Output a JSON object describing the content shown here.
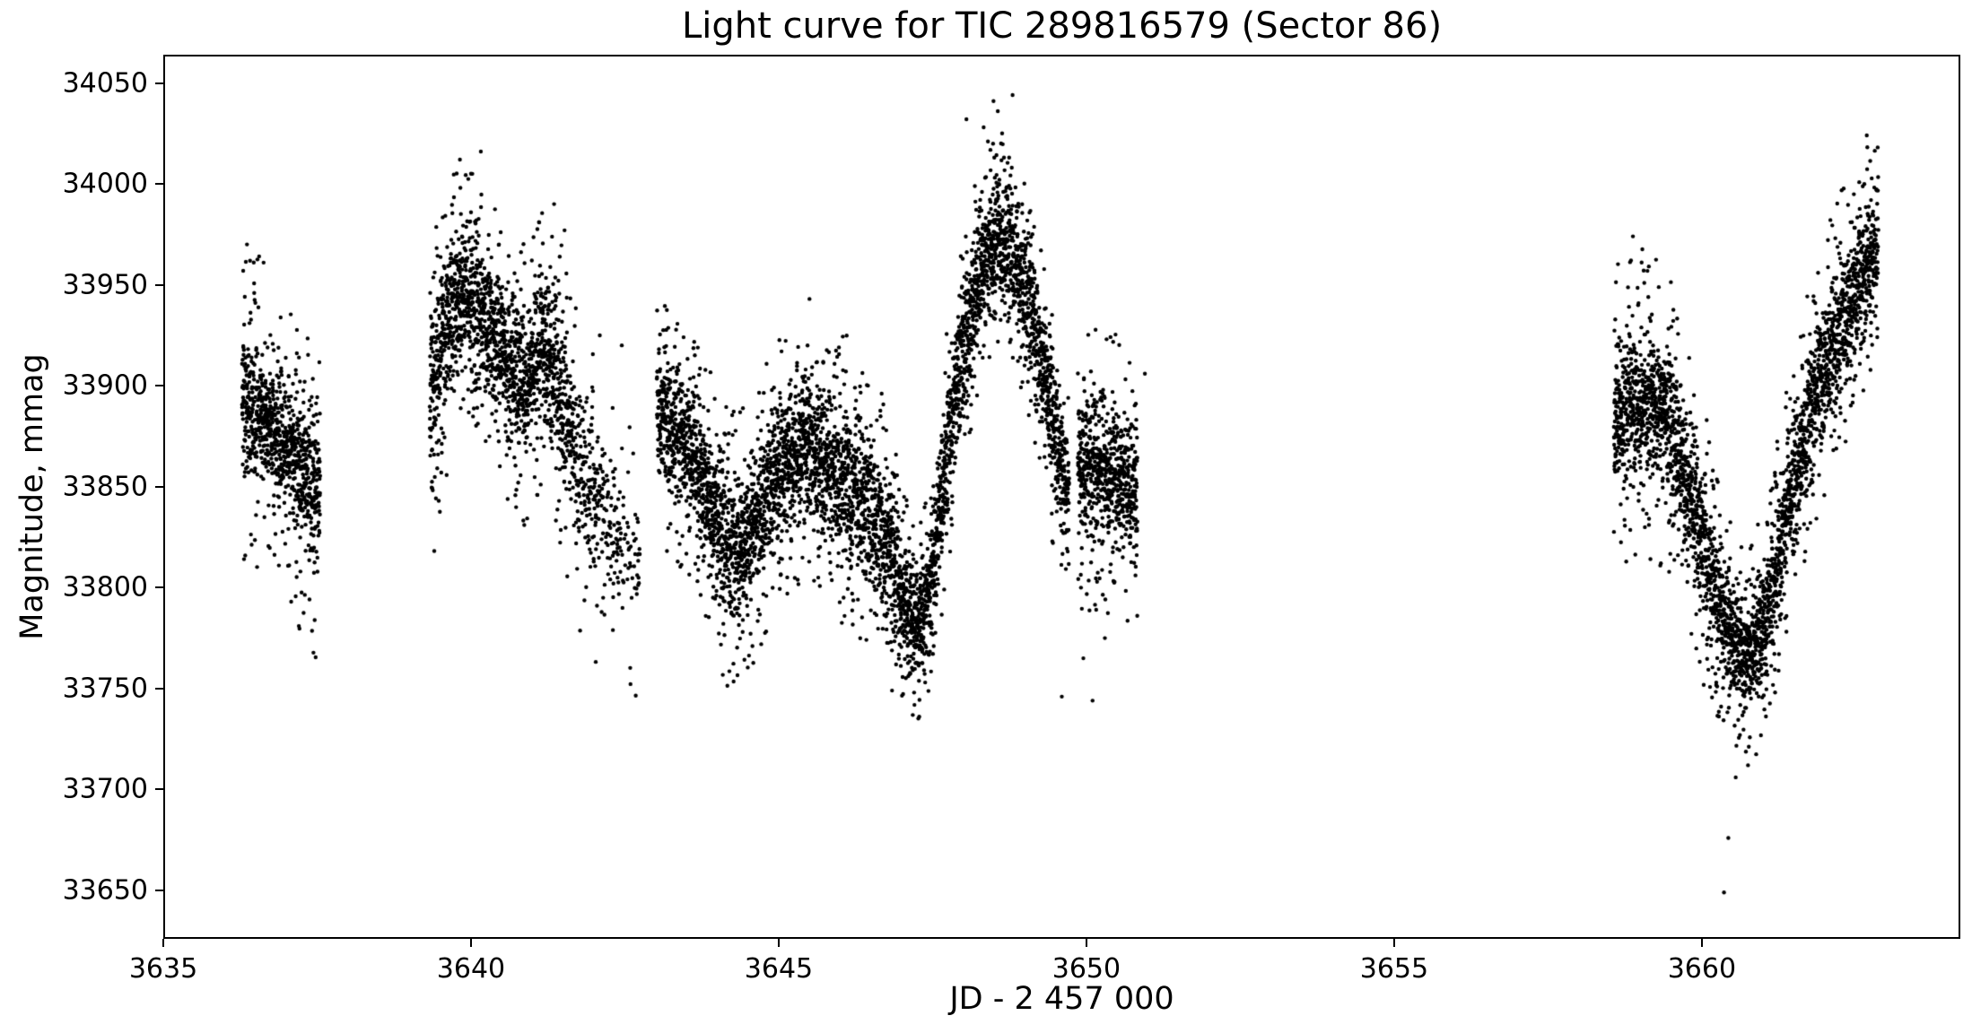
{
  "chart_data": {
    "type": "scatter",
    "title": "Light curve for TIC 289816579 (Sector 86)",
    "xlabel": "JD - 2 457 000",
    "ylabel": "Magnitude, mmag",
    "xlim": [
      3635.0,
      3664.2
    ],
    "ylim": [
      33626,
      34064
    ],
    "xticks": [
      3635,
      3640,
      3645,
      3650,
      3655,
      3660
    ],
    "yticks": [
      33650,
      33700,
      33750,
      33800,
      33850,
      33900,
      33950,
      34000,
      34050
    ],
    "grid": false,
    "legend": null,
    "marker": {
      "shape": "circle",
      "color": "#000000",
      "radius_px": 2.2
    },
    "sampling": {
      "cadence_per_day": 700,
      "seed": 7,
      "core_fraction": 0.78
    },
    "segments": [
      {
        "name": "segment-1",
        "knots": [
          [
            3636.28,
            33890,
            40,
            76,
            1.0
          ],
          [
            3636.6,
            33886,
            40,
            78,
            1.0
          ],
          [
            3636.95,
            33873,
            42,
            80,
            1.0
          ],
          [
            3637.25,
            33858,
            44,
            84,
            1.0
          ],
          [
            3637.55,
            33846,
            44,
            86,
            0.95
          ]
        ]
      },
      {
        "name": "segment-2",
        "knots": [
          [
            3639.33,
            33890,
            56,
            90,
            1.0
          ],
          [
            3639.55,
            33924,
            50,
            78,
            1.05
          ],
          [
            3639.8,
            33946,
            46,
            62,
            1.1
          ],
          [
            3640.05,
            33943,
            46,
            62,
            1.1
          ],
          [
            3640.3,
            33928,
            46,
            66,
            1.05
          ],
          [
            3640.6,
            33910,
            46,
            70,
            1.0
          ],
          [
            3640.9,
            33901,
            46,
            72,
            1.0
          ],
          [
            3641.15,
            33921,
            48,
            70,
            1.0
          ],
          [
            3641.45,
            33900,
            50,
            78,
            0.9
          ],
          [
            3641.7,
            33868,
            50,
            84,
            0.7
          ],
          [
            3641.95,
            33848,
            50,
            86,
            0.5
          ],
          [
            3642.2,
            33833,
            48,
            86,
            0.38
          ],
          [
            3642.45,
            33822,
            46,
            84,
            0.3
          ],
          [
            3642.75,
            33812,
            44,
            80,
            0.22
          ]
        ]
      },
      {
        "name": "segment-3a",
        "knots": [
          [
            3643.02,
            33886,
            44,
            66,
            1.0
          ],
          [
            3643.3,
            33880,
            44,
            66,
            1.0
          ],
          [
            3643.6,
            33868,
            45,
            70,
            1.0
          ],
          [
            3643.9,
            33842,
            45,
            72,
            1.0
          ],
          [
            3644.2,
            33818,
            44,
            70,
            1.0
          ],
          [
            3644.5,
            33822,
            44,
            70,
            1.0
          ],
          [
            3644.8,
            33846,
            45,
            70,
            1.0
          ],
          [
            3645.1,
            33862,
            45,
            70,
            1.0
          ],
          [
            3645.45,
            33870,
            45,
            72,
            1.05
          ],
          [
            3645.8,
            33862,
            46,
            74,
            1.05
          ],
          [
            3646.1,
            33852,
            46,
            76,
            1.0
          ],
          [
            3646.4,
            33842,
            46,
            78,
            1.0
          ],
          [
            3646.7,
            33824,
            44,
            74,
            1.0
          ],
          [
            3647.0,
            33797,
            40,
            60,
            1.0
          ],
          [
            3647.25,
            33781,
            34,
            48,
            1.0
          ],
          [
            3647.5,
            33806,
            38,
            54,
            1.0
          ],
          [
            3647.75,
            33872,
            44,
            62,
            1.0
          ],
          [
            3648.0,
            33920,
            44,
            60,
            1.0
          ],
          [
            3648.3,
            33958,
            40,
            56,
            1.05
          ],
          [
            3648.55,
            33975,
            38,
            55,
            1.05
          ],
          [
            3648.8,
            33968,
            40,
            55,
            1.05
          ],
          [
            3649.05,
            33944,
            40,
            58,
            1.0
          ],
          [
            3649.3,
            33906,
            42,
            60,
            1.0
          ],
          [
            3649.55,
            33866,
            42,
            62,
            1.0
          ],
          [
            3649.72,
            33846,
            42,
            64,
            1.0
          ]
        ]
      },
      {
        "name": "segment-3b",
        "knots": [
          [
            3649.86,
            33860,
            44,
            70,
            1.0
          ],
          [
            3650.1,
            33858,
            44,
            72,
            1.0
          ],
          [
            3650.45,
            33856,
            45,
            76,
            1.0
          ],
          [
            3650.83,
            33850,
            45,
            78,
            0.95
          ]
        ]
      },
      {
        "name": "segment-4",
        "knots": [
          [
            3658.57,
            33882,
            45,
            78,
            1.0
          ],
          [
            3658.9,
            33893,
            44,
            80,
            1.0
          ],
          [
            3659.2,
            33891,
            44,
            78,
            1.0
          ],
          [
            3659.5,
            33878,
            44,
            78,
            1.0
          ],
          [
            3659.8,
            33850,
            44,
            76,
            1.0
          ],
          [
            3660.1,
            33812,
            40,
            68,
            1.0
          ],
          [
            3660.4,
            33779,
            36,
            58,
            1.0
          ],
          [
            3660.7,
            33763,
            34,
            55,
            1.05
          ],
          [
            3661.0,
            33779,
            36,
            58,
            1.0
          ],
          [
            3661.3,
            33824,
            40,
            62,
            1.0
          ],
          [
            3661.6,
            33866,
            42,
            66,
            1.0
          ],
          [
            3661.9,
            33901,
            42,
            66,
            1.0
          ],
          [
            3662.2,
            33927,
            42,
            66,
            1.0
          ],
          [
            3662.5,
            33947,
            40,
            64,
            1.0
          ],
          [
            3662.7,
            33960,
            38,
            60,
            1.0
          ],
          [
            3662.87,
            33971,
            36,
            52,
            0.9
          ]
        ]
      }
    ],
    "outliers": [
      [
        3636.36,
        33970
      ],
      [
        3636.63,
        33961
      ],
      [
        3639.82,
        34012
      ],
      [
        3640.0,
        34005
      ],
      [
        3640.16,
        34016
      ],
      [
        3641.35,
        33990
      ],
      [
        3641.52,
        33977
      ],
      [
        3642.45,
        33920
      ],
      [
        3645.5,
        33943
      ],
      [
        3647.2,
        33748
      ],
      [
        3647.38,
        33753
      ],
      [
        3648.05,
        34032
      ],
      [
        3648.33,
        34028
      ],
      [
        3648.4,
        34021
      ],
      [
        3648.49,
        34041
      ],
      [
        3648.56,
        34036
      ],
      [
        3648.63,
        34025
      ],
      [
        3648.8,
        34044
      ],
      [
        3649.6,
        33746
      ],
      [
        3649.95,
        33765
      ],
      [
        3650.1,
        33744
      ],
      [
        3650.3,
        33775
      ],
      [
        3650.95,
        33906
      ],
      [
        3658.88,
        33974
      ],
      [
        3660.36,
        33649
      ],
      [
        3660.43,
        33676
      ],
      [
        3660.55,
        33706
      ],
      [
        3660.75,
        33712
      ],
      [
        3662.68,
        34024
      ]
    ],
    "colors": {
      "background": "#ffffff",
      "frame": "#000000",
      "text": "#000000",
      "marker": "#000000"
    }
  }
}
